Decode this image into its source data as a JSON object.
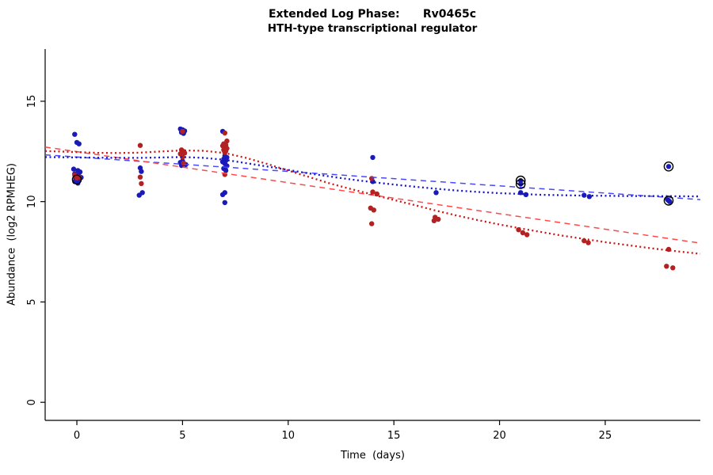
{
  "chart_data": {
    "type": "scatter",
    "title": "Extended Log Phase:      Rv0465c",
    "subtitle": "HTH-type transcriptional regulator",
    "xlabel": "Time  (days)",
    "ylabel": "Abundance  (log2 RPMHEG)",
    "xlim": [
      -1.5,
      29.5
    ],
    "ylim": [
      -0.9,
      17.6
    ],
    "xticks": [
      0,
      5,
      10,
      15,
      20,
      25
    ],
    "yticks": [
      0,
      5,
      10,
      15
    ],
    "grid": false,
    "legend": "none",
    "colors": {
      "blue_point": "#1a1ab9",
      "red_point": "#b22222",
      "blue_dash": "#4848ff",
      "red_dash": "#ff4848",
      "blue_dot": "#1515cc",
      "red_dot": "#cc1515",
      "ring": "#000000",
      "axis": "#000000"
    },
    "series": [
      {
        "name": "blue-points",
        "kind": "points",
        "color": "blue_point",
        "points": [
          [
            -0.1,
            13.35
          ],
          [
            0,
            12.95
          ],
          [
            0.1,
            12.88
          ],
          [
            -0.15,
            11.62
          ],
          [
            0.05,
            11.55
          ],
          [
            0.15,
            11.48
          ],
          [
            -0.1,
            11.38
          ],
          [
            0,
            11.3
          ],
          [
            0.1,
            11.27
          ],
          [
            0.2,
            11.2
          ],
          [
            -0.05,
            11.15
          ],
          [
            0,
            11.1
          ],
          [
            0.1,
            11.05
          ],
          [
            -0.1,
            11.0
          ],
          [
            0.05,
            10.92
          ],
          [
            3,
            11.68
          ],
          [
            3.05,
            11.5
          ],
          [
            3.1,
            10.45
          ],
          [
            2.95,
            10.32
          ],
          [
            4.9,
            13.62
          ],
          [
            5,
            13.58
          ],
          [
            5.1,
            13.52
          ],
          [
            4.95,
            13.45
          ],
          [
            5.05,
            13.4
          ],
          [
            5,
            12.02
          ],
          [
            4.9,
            11.95
          ],
          [
            5.05,
            11.9
          ],
          [
            5.15,
            11.85
          ],
          [
            4.95,
            11.8
          ],
          [
            6.9,
            13.5
          ],
          [
            7,
            12.28
          ],
          [
            7.1,
            12.2
          ],
          [
            6.95,
            12.12
          ],
          [
            7.05,
            12.05
          ],
          [
            6.9,
            11.98
          ],
          [
            7,
            11.9
          ],
          [
            7.1,
            11.78
          ],
          [
            6.95,
            11.65
          ],
          [
            7.05,
            11.55
          ],
          [
            7,
            10.45
          ],
          [
            6.9,
            10.35
          ],
          [
            7,
            9.95
          ],
          [
            14,
            12.2
          ],
          [
            14,
            11.0
          ],
          [
            17,
            10.45
          ],
          [
            21,
            11.05
          ],
          [
            21,
            10.88
          ],
          [
            21,
            10.45
          ],
          [
            21.25,
            10.35
          ],
          [
            24,
            10.32
          ],
          [
            24.25,
            10.25
          ],
          [
            28,
            11.75
          ],
          [
            27.95,
            10.1
          ],
          [
            28,
            10.05
          ],
          [
            28.05,
            10.0
          ]
        ]
      },
      {
        "name": "red-points",
        "kind": "points",
        "color": "red_point",
        "points": [
          [
            -0.1,
            11.32
          ],
          [
            0.1,
            11.22
          ],
          [
            0,
            11.18
          ],
          [
            3,
            12.8
          ],
          [
            3,
            11.22
          ],
          [
            3.05,
            10.9
          ],
          [
            5,
            13.5
          ],
          [
            4.95,
            12.58
          ],
          [
            5.05,
            12.5
          ],
          [
            5.1,
            12.42
          ],
          [
            4.9,
            12.38
          ],
          [
            5,
            12.22
          ],
          [
            5.05,
            11.92
          ],
          [
            7,
            13.42
          ],
          [
            7.1,
            13.02
          ],
          [
            6.95,
            12.88
          ],
          [
            7.05,
            12.82
          ],
          [
            6.9,
            12.78
          ],
          [
            7,
            12.72
          ],
          [
            7.1,
            12.65
          ],
          [
            6.95,
            12.58
          ],
          [
            7.05,
            12.52
          ],
          [
            7,
            12.45
          ],
          [
            7,
            11.35
          ],
          [
            13.95,
            11.15
          ],
          [
            14,
            10.48
          ],
          [
            14.2,
            10.38
          ],
          [
            13.9,
            9.68
          ],
          [
            14.05,
            9.58
          ],
          [
            13.95,
            8.9
          ],
          [
            16.95,
            9.22
          ],
          [
            17.1,
            9.12
          ],
          [
            16.9,
            9.05
          ],
          [
            20.9,
            8.6
          ],
          [
            21.1,
            8.45
          ],
          [
            21.3,
            8.35
          ],
          [
            24,
            8.05
          ],
          [
            24.2,
            7.95
          ],
          [
            28,
            7.62
          ],
          [
            27.9,
            6.78
          ],
          [
            28.2,
            6.7
          ]
        ]
      },
      {
        "name": "blue-linear-fit",
        "kind": "line",
        "style": "dashed",
        "color": "blue_dash",
        "points": [
          [
            -1.5,
            12.33
          ],
          [
            29.5,
            10.1
          ]
        ]
      },
      {
        "name": "red-linear-fit",
        "kind": "line",
        "style": "dashed",
        "color": "red_dash",
        "points": [
          [
            -1.5,
            12.72
          ],
          [
            29.5,
            7.93
          ]
        ]
      },
      {
        "name": "blue-smooth-fit",
        "kind": "line",
        "style": "dotted",
        "color": "blue_dot",
        "points": [
          [
            -1.5,
            12.22
          ],
          [
            0,
            12.2
          ],
          [
            2,
            12.18
          ],
          [
            3,
            12.18
          ],
          [
            4,
            12.2
          ],
          [
            5,
            12.22
          ],
          [
            6,
            12.18
          ],
          [
            7,
            12.08
          ],
          [
            8,
            11.92
          ],
          [
            9,
            11.75
          ],
          [
            10,
            11.58
          ],
          [
            11,
            11.4
          ],
          [
            12,
            11.25
          ],
          [
            13,
            11.1
          ],
          [
            14,
            10.97
          ],
          [
            15,
            10.85
          ],
          [
            16,
            10.74
          ],
          [
            17,
            10.64
          ],
          [
            18,
            10.55
          ],
          [
            19,
            10.48
          ],
          [
            20,
            10.42
          ],
          [
            21,
            10.38
          ],
          [
            22,
            10.34
          ],
          [
            23,
            10.32
          ],
          [
            24,
            10.3
          ],
          [
            25,
            10.29
          ],
          [
            26,
            10.28
          ],
          [
            27,
            10.28
          ],
          [
            28,
            10.27
          ],
          [
            29.5,
            10.26
          ]
        ]
      },
      {
        "name": "red-smooth-fit",
        "kind": "line",
        "style": "dotted",
        "color": "red_dot",
        "points": [
          [
            -1.5,
            12.52
          ],
          [
            0,
            12.47
          ],
          [
            1,
            12.43
          ],
          [
            2,
            12.42
          ],
          [
            3,
            12.44
          ],
          [
            4,
            12.5
          ],
          [
            5,
            12.55
          ],
          [
            6,
            12.53
          ],
          [
            7,
            12.42
          ],
          [
            8,
            12.18
          ],
          [
            9,
            11.88
          ],
          [
            10,
            11.55
          ],
          [
            11,
            11.22
          ],
          [
            12,
            10.9
          ],
          [
            13,
            10.62
          ],
          [
            14,
            10.35
          ],
          [
            15,
            10.08
          ],
          [
            16,
            9.82
          ],
          [
            17,
            9.55
          ],
          [
            18,
            9.3
          ],
          [
            19,
            9.07
          ],
          [
            20,
            8.86
          ],
          [
            21,
            8.66
          ],
          [
            22,
            8.48
          ],
          [
            23,
            8.3
          ],
          [
            24,
            8.14
          ],
          [
            25,
            7.98
          ],
          [
            26,
            7.84
          ],
          [
            27,
            7.7
          ],
          [
            28,
            7.57
          ],
          [
            29.5,
            7.4
          ]
        ]
      },
      {
        "name": "flagged-point-rings",
        "kind": "rings",
        "color": "ring",
        "points": [
          [
            0,
            11.1
          ],
          [
            21,
            11.05
          ],
          [
            21,
            10.88
          ],
          [
            28,
            11.75
          ],
          [
            28,
            10.05
          ]
        ]
      }
    ]
  }
}
